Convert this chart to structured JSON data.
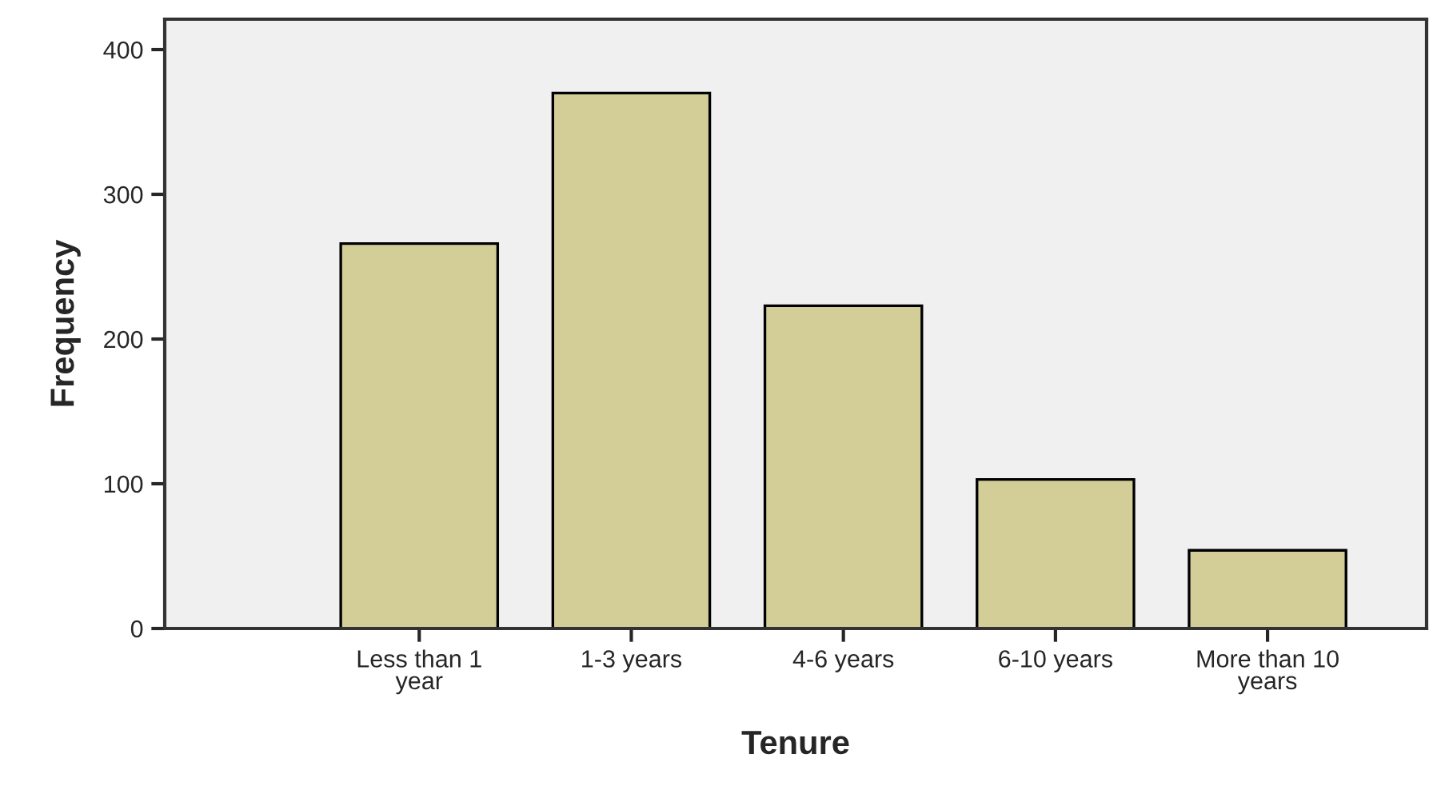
{
  "chart_data": {
    "type": "bar",
    "xlabel": "Tenure",
    "ylabel": "Frequency",
    "categories": [
      "Less than 1\nyear",
      "1-3 years",
      "4-6 years",
      "6-10 years",
      "More than 10\nyears"
    ],
    "values": [
      266,
      370,
      223,
      103,
      54
    ],
    "color": "#d3ce98",
    "ylim": [
      0,
      421
    ],
    "yticks": [
      0,
      100,
      200,
      300,
      400
    ],
    "grid": false
  }
}
